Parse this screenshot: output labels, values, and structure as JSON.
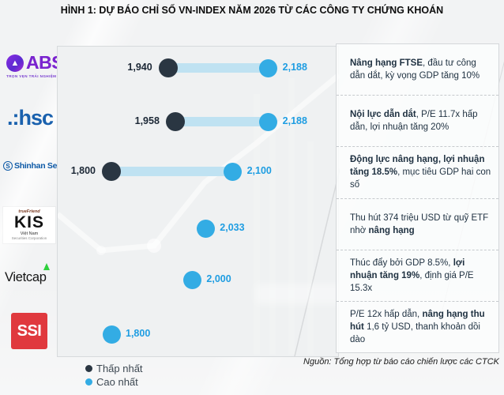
{
  "title": "HÌNH 1: DỰ BÁO CHỈ SỐ VN-INDEX NĂM 2026 TỪ CÁC CÔNG TY CHỨNG KHOÁN",
  "source": "Nguồn: Tổng hợp từ báo cáo chiến lược các CTCK",
  "legend": {
    "low_label": "Thấp nhất",
    "high_label": "Cao nhất"
  },
  "colors": {
    "low_dot": "#2a3642",
    "high_dot": "#33ace4",
    "band": "#bfe2f2",
    "low_value_text": "#1c2836",
    "high_value_text": "#1e9de2"
  },
  "logos": {
    "abs": {
      "icon": "abs-arrow-icon",
      "name": "ABS",
      "tagline": "TRỌN VẸN TRẢI NGHIỆM ĐẦU TƯ"
    },
    "hsc": {
      "name": ".:hsc"
    },
    "shinhan": {
      "icon": "shinhan-s-icon",
      "icon_letter": "S",
      "name": "Shinhan Securities"
    },
    "kis": {
      "top": "trueFriend",
      "name": "KIS",
      "sub1": "Việt Nam",
      "sub2": "Securities Corporation"
    },
    "vietcap": {
      "name": "Vietcap",
      "icon": "green-triangle-icon"
    },
    "ssi": {
      "name": "SSI"
    }
  },
  "chart_data": {
    "type": "dumbbell",
    "title": "Dự báo chỉ số VN-Index năm 2026",
    "x_range": [
      1700,
      2350
    ],
    "legend_position": "bottom-left",
    "series_labels": {
      "low": "Thấp nhất",
      "high": "Cao nhất"
    },
    "rows": [
      {
        "company": "ABS",
        "low": 1940,
        "high": 2188,
        "low_label": "1,940",
        "high_label": "2,188"
      },
      {
        "company": "HSC",
        "low": 1958,
        "high": 2188,
        "low_label": "1,958",
        "high_label": "2,188"
      },
      {
        "company": "Shinhan Securities",
        "low": 1800,
        "high": 2100,
        "low_label": "1,800",
        "high_label": "2,100"
      },
      {
        "company": "KIS",
        "low": null,
        "high": 2033,
        "low_label": null,
        "high_label": "2,033"
      },
      {
        "company": "Vietcap",
        "low": null,
        "high": 2000,
        "low_label": null,
        "high_label": "2,000"
      },
      {
        "company": "SSI",
        "low": null,
        "high": 1800,
        "low_label": null,
        "high_label": "1,800"
      }
    ]
  },
  "annotations": [
    {
      "company": "ABS",
      "segments": [
        {
          "text": "Nâng hạng FTSE",
          "bold": true
        },
        {
          "text": ", đầu tư công dẫn dắt, kỳ vọng GDP tăng 10%",
          "bold": false
        }
      ]
    },
    {
      "company": "HSC",
      "segments": [
        {
          "text": "Nội lực dẫn dắt",
          "bold": true
        },
        {
          "text": ", P/E 11.7x hấp dẫn, lợi nhuận tăng 20%",
          "bold": false
        }
      ]
    },
    {
      "company": "Shinhan Securities",
      "segments": [
        {
          "text": "Động lực nâng hạng, lợi nhuận tăng 18.5%",
          "bold": true
        },
        {
          "text": ", mục tiêu GDP hai con số",
          "bold": false
        }
      ]
    },
    {
      "company": "KIS",
      "segments": [
        {
          "text": "Thu hút 374 triệu USD từ quỹ ETF nhờ ",
          "bold": false
        },
        {
          "text": "nâng hạng",
          "bold": true
        }
      ]
    },
    {
      "company": "Vietcap",
      "segments": [
        {
          "text": "Thúc đẩy bởi GDP 8.5%, ",
          "bold": false
        },
        {
          "text": "lợi nhuận tăng 19%",
          "bold": true
        },
        {
          "text": ", định giá P/E 15.3x",
          "bold": false
        }
      ]
    },
    {
      "company": "SSI",
      "segments": [
        {
          "text": "P/E 12x hấp dẫn, ",
          "bold": false
        },
        {
          "text": "nâng hạng thu hút",
          "bold": true
        },
        {
          "text": " 1,6 tỷ USD, thanh khoản dồi dào",
          "bold": false
        }
      ]
    }
  ]
}
